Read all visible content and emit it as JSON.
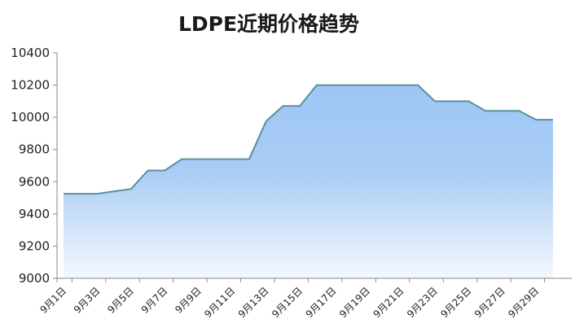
{
  "chart_data": {
    "type": "area",
    "title": "LDPE近期价格趋势",
    "xlabel": "",
    "ylabel": "",
    "ylim": [
      9000,
      10400
    ],
    "yticks": [
      9000,
      9200,
      9400,
      9600,
      9800,
      10000,
      10200,
      10400
    ],
    "x": [
      "9月1日",
      "9月2日",
      "9月3日",
      "9月4日",
      "9月5日",
      "9月6日",
      "9月7日",
      "9月8日",
      "9月9日",
      "9月10日",
      "9月11日",
      "9月12日",
      "9月13日",
      "9月14日",
      "9月15日",
      "9月16日",
      "9月17日",
      "9月18日",
      "9月19日",
      "9月20日",
      "9月21日",
      "9月22日",
      "9月23日",
      "9月24日",
      "9月25日",
      "9月26日",
      "9月27日",
      "9月28日",
      "9月29日",
      "9月30日"
    ],
    "xtick_labels": [
      "9月1日",
      "9月3日",
      "9月5日",
      "9月7日",
      "9月9日",
      "9月11日",
      "9月13日",
      "9月15日",
      "9月17日",
      "9月19日",
      "9月21日",
      "9月23日",
      "9月25日",
      "9月27日",
      "9月29日"
    ],
    "series": [
      {
        "values": [
          9525,
          9525,
          9525,
          9540,
          9555,
          9670,
          9670,
          9740,
          9740,
          9740,
          9740,
          9740,
          9975,
          10070,
          10070,
          10200,
          10200,
          10200,
          10200,
          10200,
          10200,
          10200,
          10100,
          10100,
          10100,
          10040,
          10040,
          10040,
          9985,
          9985
        ]
      }
    ],
    "grid": false,
    "legend": "none",
    "colors": {
      "line": "#5b8fa0",
      "fill_top": "#9ec6f5",
      "fill_bottom": "#f4f8fd",
      "axis": "#8a8a8a"
    }
  }
}
